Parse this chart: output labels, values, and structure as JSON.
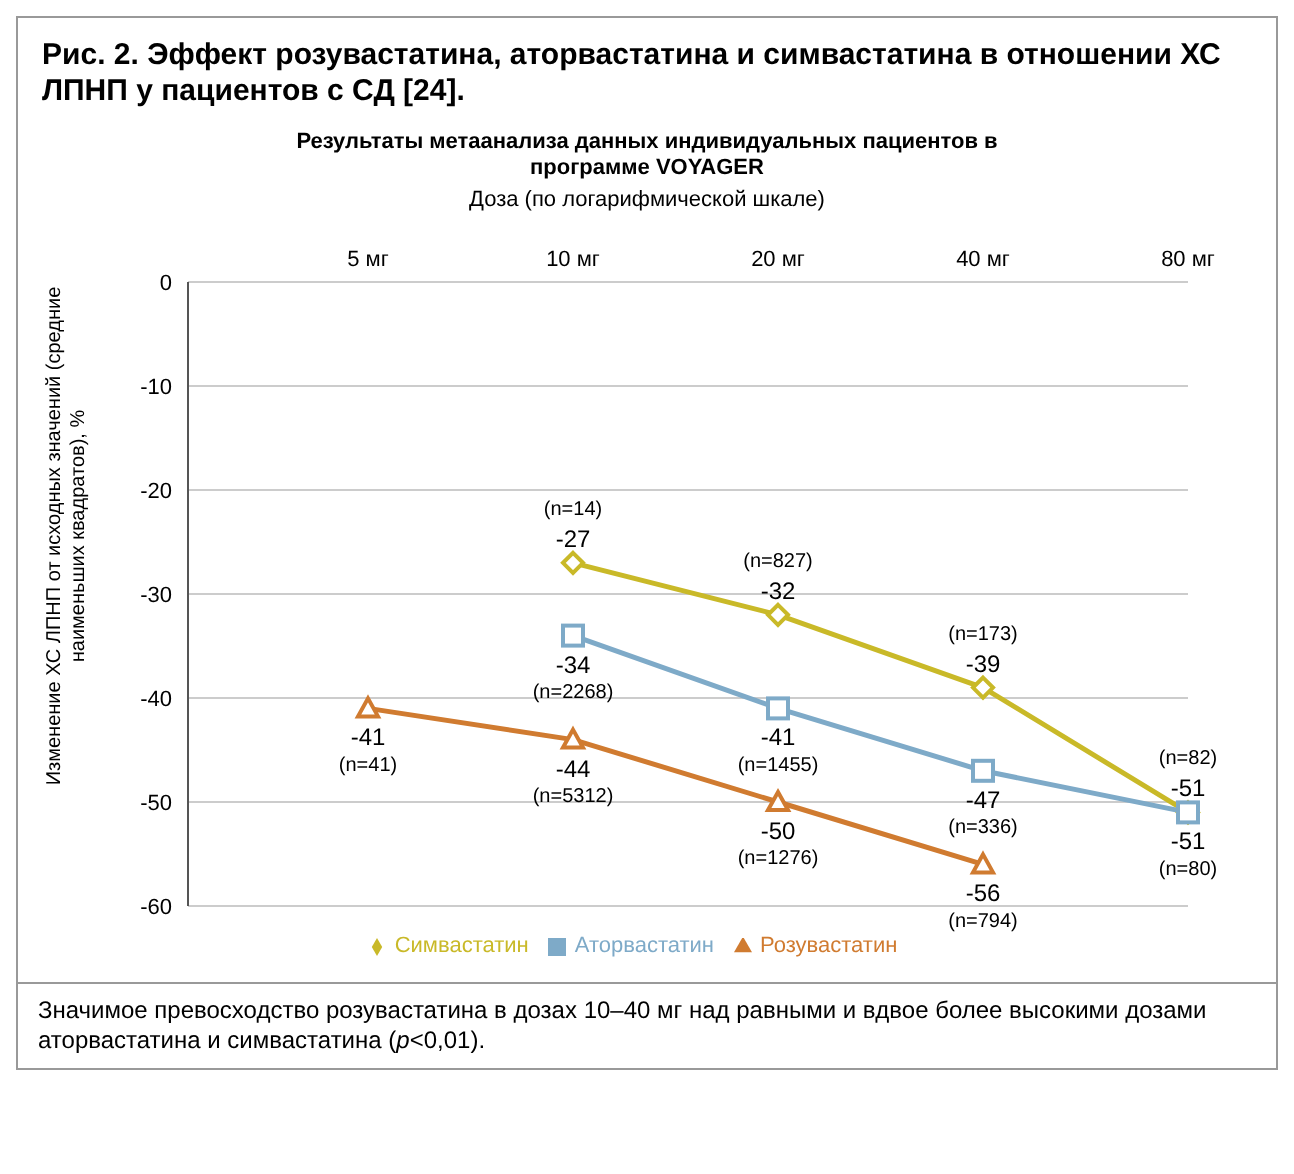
{
  "chart_data": {
    "type": "line",
    "title": "Рис. 2. Эффект розувастатина, аторвастатина и симвастатина в отношении ХС ЛПНП у пациентов с СД [24].",
    "subtitle": "Результаты метаанализа данных индивидуальных пациентов в программе VOYAGER",
    "xlabel": "Доза (по логарифмической шкале)",
    "ylabel": "Изменение ХС ЛПНП от исходных значений (средние наименьших квадратов), %",
    "categories": [
      "5 мг",
      "10 мг",
      "20 мг",
      "40 мг",
      "80 мг"
    ],
    "ylim": [
      -60,
      0
    ],
    "yticks": [
      0,
      -10,
      -20,
      -30,
      -40,
      -50,
      -60
    ],
    "grid": "y",
    "legend": "bottom",
    "data_labels": true,
    "series": [
      {
        "name": "Симвастатин",
        "color": "#c9b928",
        "marker": "diamond",
        "values": [
          null,
          -27,
          -32,
          -39,
          -51
        ]
      },
      {
        "name": "Аторвастатин",
        "color": "#7eaac8",
        "marker": "square",
        "values": [
          null,
          -34,
          -41,
          -47,
          -51
        ]
      },
      {
        "name": "Розувастатин",
        "color": "#d07b30",
        "marker": "triangle",
        "values": [
          -41,
          -44,
          -50,
          -56,
          null
        ]
      }
    ],
    "annotations": [
      {
        "text": "(n=14)",
        "x": "10 мг",
        "y": -27
      },
      {
        "text": "(n=827)",
        "x": "20 мг",
        "y": -32
      },
      {
        "text": "(n=173)",
        "x": "40 мг",
        "y": -39
      },
      {
        "text": "(n=82)",
        "x": "80 мг",
        "y": -51
      },
      {
        "text": "(n=2268)",
        "x": "10 мг",
        "y": -34
      },
      {
        "text": "(n=1455)",
        "x": "20 мг",
        "y": -41
      },
      {
        "text": "(n=336)",
        "x": "40 мг",
        "y": -47
      },
      {
        "text": "(n=80)",
        "x": "80 мг",
        "y": -51
      },
      {
        "text": "(n=41)",
        "x": "5 мг",
        "y": -41
      },
      {
        "text": "(n=5312)",
        "x": "10 мг",
        "y": -44
      },
      {
        "text": "(n=1276)",
        "x": "20 мг",
        "y": -50
      },
      {
        "text": "(n=794)",
        "x": "40 мг",
        "y": -56
      },
      "Значимое превосходство розувастатина в дозах 10–40 мг над равными и вдвое более высокими дозами аторвастатина и симвастатина (p<0,01)."
    ]
  }
}
